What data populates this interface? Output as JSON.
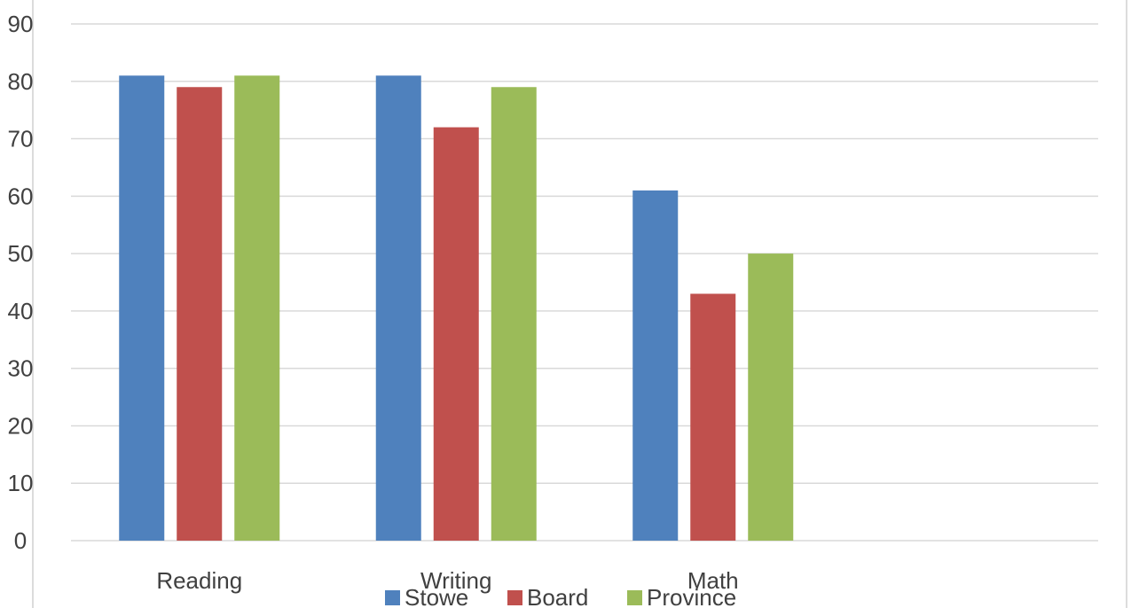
{
  "chart_data": {
    "type": "bar",
    "title": "",
    "xlabel": "",
    "ylabel": "",
    "categories": [
      "Reading",
      "Writing",
      "Math",
      ""
    ],
    "series": [
      {
        "name": "Stowe",
        "color": "#4F81BD",
        "values": [
          81,
          81,
          61,
          null
        ]
      },
      {
        "name": "Board",
        "color": "#C0504D",
        "values": [
          79,
          72,
          43,
          null
        ]
      },
      {
        "name": "Province",
        "color": "#9BBB59",
        "values": [
          81,
          79,
          50,
          null
        ]
      }
    ],
    "ylim": [
      0,
      90
    ],
    "yticks": [
      0,
      10,
      20,
      30,
      40,
      50,
      60,
      70,
      80,
      90
    ],
    "grid": true,
    "legend_position": "bottom"
  }
}
